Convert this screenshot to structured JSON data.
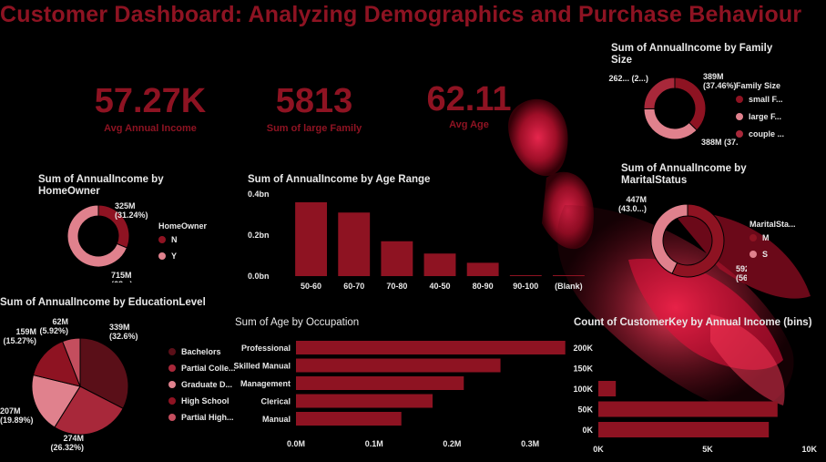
{
  "title": "Customer Dashboard: Analyzing Demographics and Purchase Behaviour",
  "kpis": [
    {
      "value": "57.27K",
      "label": "Avg Annual Income"
    },
    {
      "value": "5813",
      "label": "Sum of large Family"
    },
    {
      "value": "62.11",
      "label": "Avg Age"
    }
  ],
  "colors": {
    "dark": "#8e1322",
    "mid": "#a8283a",
    "light": "#e0818d",
    "bg": "#000000"
  },
  "chart_data": [
    {
      "id": "family",
      "type": "pie",
      "title": "Sum of AnnualIncome by Family Size",
      "legend_title": "Family Size",
      "legend": [
        "small F...",
        "large F...",
        "couple ..."
      ],
      "values": [
        389,
        388,
        262
      ],
      "labels": [
        "389M (37.46%)",
        "388M (37...)",
        "262... (2...)"
      ],
      "colors": [
        "#8e1322",
        "#e0818d",
        "#a8283a"
      ]
    },
    {
      "id": "homeowner",
      "type": "pie",
      "title": "Sum of AnnualIncome by HomeOwner",
      "legend_title": "HomeOwner",
      "legend": [
        "N",
        "Y"
      ],
      "values": [
        325,
        715
      ],
      "labels": [
        "325M (31.24%)",
        "715M (68...)"
      ],
      "colors": [
        "#8e1322",
        "#e0818d"
      ]
    },
    {
      "id": "agerange",
      "type": "bar",
      "title": "Sum of AnnualIncome by Age Range",
      "categories": [
        "50-60",
        "60-70",
        "70-80",
        "40-50",
        "80-90",
        "90-100",
        "(Blank)"
      ],
      "values": [
        0.36,
        0.31,
        0.17,
        0.11,
        0.065,
        0.004,
        0.001
      ],
      "yticks": [
        "0.4bn",
        "0.2bn",
        "0.0bn"
      ],
      "ytick_values": [
        0.4,
        0.2,
        0
      ],
      "ylim": [
        0,
        0.4
      ]
    },
    {
      "id": "marital",
      "type": "pie",
      "title": "Sum of AnnualIncome by MaritalStatus",
      "legend_title": "MaritalSta...",
      "legend": [
        "M",
        "S"
      ],
      "values": [
        592,
        447
      ],
      "labels": [
        "592M (56.97%)",
        "447M (43.0...)"
      ],
      "colors": [
        "#8e1322",
        "#e0818d"
      ]
    },
    {
      "id": "education",
      "type": "pie",
      "title": "Sum of AnnualIncome by EducationLevel",
      "legend": [
        "Bachelors",
        "Partial Colle...",
        "Graduate D...",
        "High School",
        "Partial High..."
      ],
      "values": [
        339,
        274,
        207,
        159,
        62
      ],
      "labels": [
        "339M (32.6%)",
        "274M (26.32%)",
        "207M (19.89%)",
        "159M (15.27%)",
        "62M (5.92%)"
      ],
      "colors": [
        "#5a0f18",
        "#a8283a",
        "#e0818d",
        "#8e1322",
        "#c44e5e"
      ]
    },
    {
      "id": "occupation",
      "type": "bar",
      "orientation": "horizontal",
      "title": "Sum of Age by Occupation",
      "categories": [
        "Professional",
        "Skilled Manual",
        "Management",
        "Clerical",
        "Manual"
      ],
      "values": [
        0.345,
        0.262,
        0.215,
        0.175,
        0.135
      ],
      "xticks": [
        "0.0M",
        "0.1M",
        "0.2M",
        "0.3M"
      ],
      "xtick_values": [
        0,
        0.1,
        0.2,
        0.3
      ],
      "xlim": [
        0,
        0.35
      ]
    },
    {
      "id": "incomebins",
      "type": "bar",
      "orientation": "horizontal",
      "title": "Count of CustomerKey by Annual Income (bins)",
      "categories": [
        "200K",
        "150K",
        "100K",
        "50K",
        "0K"
      ],
      "values": [
        0,
        0,
        800,
        8200,
        7800
      ],
      "xticks": [
        "0K",
        "5K",
        "10K"
      ],
      "xtick_values": [
        0,
        5000,
        10000
      ],
      "xlim": [
        0,
        10000
      ]
    }
  ]
}
